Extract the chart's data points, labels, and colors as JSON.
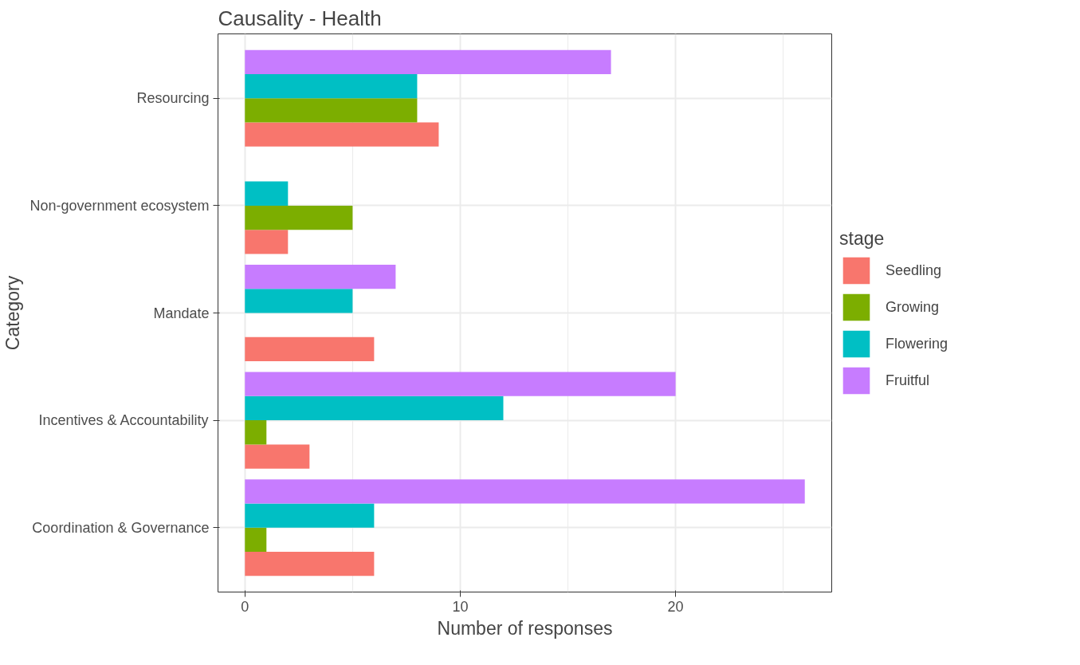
{
  "chart_data": {
    "type": "bar",
    "orientation": "horizontal",
    "title": "Causality - Health",
    "xlabel": "Number of responses",
    "ylabel": "Category",
    "legend_title": "stage",
    "categories": [
      "Resourcing",
      "Non-government ecosystem",
      "Mandate",
      "Incentives & Accountability",
      "Coordination & Governance"
    ],
    "series": [
      {
        "name": "Seedling",
        "color": "#f8766d",
        "values": [
          9,
          2,
          6,
          3,
          6
        ]
      },
      {
        "name": "Growing",
        "color": "#7cae00",
        "values": [
          8,
          5,
          null,
          1,
          1
        ]
      },
      {
        "name": "Flowering",
        "color": "#00bfc4",
        "values": [
          8,
          2,
          5,
          12,
          6
        ]
      },
      {
        "name": "Fruitful",
        "color": "#c77cff",
        "values": [
          17,
          null,
          7,
          20,
          26
        ]
      }
    ],
    "xlim": [
      -1.25,
      27.25
    ],
    "xticks": [
      0,
      10,
      20
    ],
    "grid": true,
    "legend": "right"
  }
}
